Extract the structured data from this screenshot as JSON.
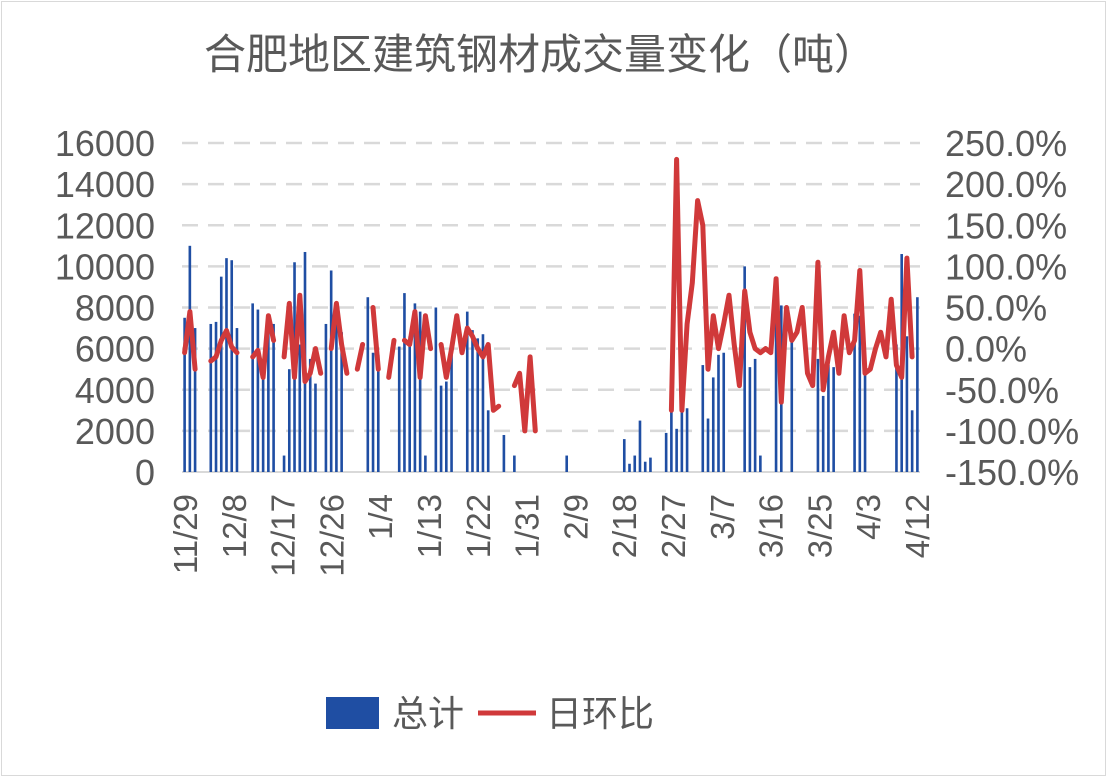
{
  "chart_data": {
    "type": "bar+line",
    "title": "合肥地区建筑钢材成交量变化（吨）",
    "left_axis": {
      "min": 0,
      "max": 16000,
      "step": 2000,
      "ticks": [
        "0",
        "2000",
        "4000",
        "6000",
        "8000",
        "10000",
        "12000",
        "14000",
        "16000"
      ]
    },
    "right_axis": {
      "min": -150,
      "max": 250,
      "step": 50,
      "unit": "%",
      "ticks": [
        "-150.0%",
        "-100.0%",
        "-50.0%",
        "0.0%",
        "50.0%",
        "100.0%",
        "150.0%",
        "200.0%",
        "250.0%"
      ]
    },
    "x_tick_labels": [
      "11/29",
      "12/8",
      "12/17",
      "12/26",
      "1/4",
      "1/13",
      "1/22",
      "1/31",
      "2/9",
      "2/18",
      "2/27",
      "3/7",
      "3/16",
      "3/25",
      "4/3",
      "4/12"
    ],
    "grid": "horizontal dashed",
    "legend_position": "bottom",
    "colors": {
      "bar": "#1f4ea3",
      "line": "#d0393a",
      "grid": "#d9d9d9",
      "text": "#595959"
    },
    "series": [
      {
        "name": "总计",
        "type": "bar",
        "values": [
          7500,
          11000,
          7000,
          0,
          0,
          7200,
          7300,
          9500,
          10400,
          10300,
          7000,
          0,
          0,
          8200,
          7900,
          4800,
          7500,
          7200,
          0,
          800,
          5000,
          10200,
          6200,
          10700,
          5500,
          4300,
          0,
          7200,
          9800,
          8100,
          6800,
          0,
          0,
          0,
          0,
          8500,
          5800,
          5700,
          0,
          0,
          0,
          6100,
          8700,
          6600,
          8200,
          7800,
          800,
          0,
          8000,
          4200,
          4400,
          6200,
          0,
          0,
          7800,
          6900,
          6500,
          6700,
          3000,
          0,
          0,
          1800,
          0,
          800,
          0,
          0,
          0,
          0,
          0,
          0,
          0,
          0,
          0,
          800,
          0,
          0,
          0,
          0,
          0,
          0,
          0,
          0,
          0,
          0,
          1600,
          400,
          800,
          2500,
          500,
          700,
          0,
          0,
          1900,
          4800,
          2100,
          3000,
          3100,
          0,
          0,
          5200,
          2600,
          4600,
          5700,
          5800,
          0,
          0,
          0,
          10000,
          5100,
          5500,
          800,
          0,
          0,
          9400,
          8100,
          0,
          6400,
          0,
          0,
          0,
          0,
          5500,
          3700,
          5200,
          5100,
          0,
          0,
          0,
          7700,
          7600,
          5000,
          0,
          0,
          0,
          0,
          0,
          6200,
          10600,
          6600,
          3000,
          8500
        ]
      },
      {
        "name": "日环比",
        "type": "line",
        "values": [
          -5,
          45,
          -25,
          null,
          null,
          -15,
          -10,
          10,
          22,
          2,
          -5,
          null,
          null,
          -10,
          -2,
          -35,
          40,
          10,
          null,
          -10,
          55,
          -35,
          65,
          -40,
          -30,
          0,
          -30,
          null,
          0,
          55,
          5,
          -30,
          null,
          -25,
          5,
          null,
          50,
          -25,
          null,
          -35,
          10,
          null,
          10,
          5,
          45,
          -35,
          40,
          0,
          null,
          5,
          -35,
          0,
          40,
          -5,
          25,
          15,
          0,
          -10,
          5,
          -75,
          -70,
          null,
          null,
          -45,
          -30,
          -100,
          -10,
          -100,
          null,
          null,
          null,
          null,
          null,
          null,
          null,
          null,
          null,
          null,
          null,
          null,
          null,
          null,
          null,
          null,
          null,
          null,
          null,
          null,
          null,
          null,
          null,
          null,
          null,
          -75,
          230,
          -75,
          30,
          80,
          180,
          150,
          -25,
          40,
          0,
          30,
          65,
          5,
          -45,
          70,
          20,
          0,
          -5,
          0,
          -5,
          85,
          -65,
          50,
          10,
          20,
          50,
          -30,
          -45,
          105,
          -50,
          -10,
          20,
          -30,
          40,
          -5,
          10,
          95,
          -30,
          -25,
          0,
          20,
          -10,
          60,
          -20,
          -35,
          110,
          -10
        ]
      }
    ]
  }
}
